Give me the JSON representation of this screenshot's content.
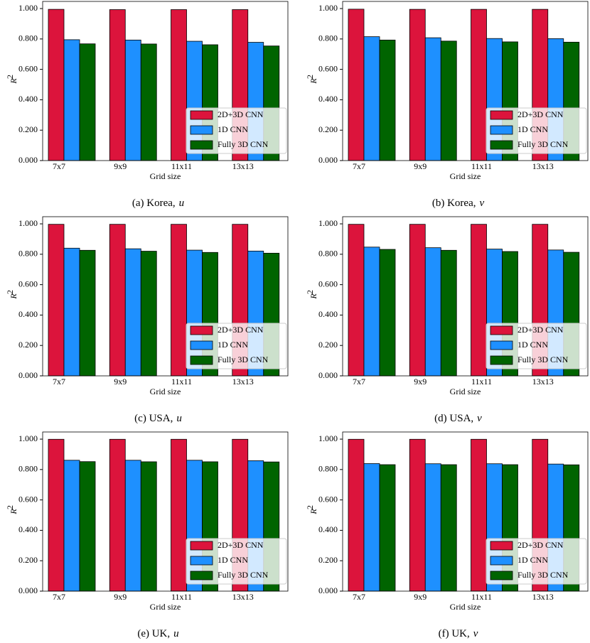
{
  "chart_data": [
    {
      "type": "bar",
      "label": "(a) Korea,",
      "variable": "u",
      "xlabel": "Grid size",
      "ylabel": "R",
      "ylabel_sup": "2",
      "categories": [
        "7x7",
        "9x9",
        "11x11",
        "13x13"
      ],
      "series": [
        {
          "name": "2D+3D CNN",
          "color": "#dc143c",
          "values": [
            0.995,
            0.993,
            0.993,
            0.993
          ]
        },
        {
          "name": "1D CNN",
          "color": "#1e90ff",
          "values": [
            0.795,
            0.793,
            0.785,
            0.778
          ]
        },
        {
          "name": "Fully 3D CNN",
          "color": "#006400",
          "values": [
            0.768,
            0.767,
            0.762,
            0.754
          ]
        }
      ],
      "ylim": [
        0,
        1.047
      ],
      "yticks": [
        {
          "value": 0,
          "label": "0.000"
        },
        {
          "value": 0.2,
          "label": "0.200"
        },
        {
          "value": 0.4,
          "label": "0.400"
        },
        {
          "value": 0.6,
          "label": "0.600"
        },
        {
          "value": 0.8,
          "label": "0.800"
        },
        {
          "value": 1,
          "label": "1.000"
        }
      ],
      "legend": "lower right"
    },
    {
      "type": "bar",
      "label": "(b) Korea,",
      "variable": "v",
      "xlabel": "Grid size",
      "ylabel": "R",
      "ylabel_sup": "2",
      "categories": [
        "7x7",
        "9x9",
        "11x11",
        "13x13"
      ],
      "series": [
        {
          "name": "2D+3D CNN",
          "color": "#dc143c",
          "values": [
            0.996,
            0.995,
            0.995,
            0.995
          ]
        },
        {
          "name": "1D CNN",
          "color": "#1e90ff",
          "values": [
            0.815,
            0.808,
            0.803,
            0.802
          ]
        },
        {
          "name": "Fully 3D CNN",
          "color": "#006400",
          "values": [
            0.793,
            0.786,
            0.781,
            0.779
          ]
        }
      ],
      "ylim": [
        0,
        1.047
      ],
      "yticks": [
        {
          "value": 0,
          "label": "0.000"
        },
        {
          "value": 0.2,
          "label": "0.200"
        },
        {
          "value": 0.4,
          "label": "0.400"
        },
        {
          "value": 0.6,
          "label": "0.600"
        },
        {
          "value": 0.8,
          "label": "0.800"
        },
        {
          "value": 1,
          "label": "1.000"
        }
      ],
      "legend": "lower right"
    },
    {
      "type": "bar",
      "label": "(c) USA,",
      "variable": "u",
      "xlabel": "Grid size",
      "ylabel": "R",
      "ylabel_sup": "2",
      "categories": [
        "7x7",
        "9x9",
        "11x11",
        "13x13"
      ],
      "series": [
        {
          "name": "2D+3D CNN",
          "color": "#dc143c",
          "values": [
            0.997,
            0.997,
            0.997,
            0.997
          ]
        },
        {
          "name": "1D CNN",
          "color": "#1e90ff",
          "values": [
            0.84,
            0.836,
            0.827,
            0.821
          ]
        },
        {
          "name": "Fully 3D CNN",
          "color": "#006400",
          "values": [
            0.826,
            0.82,
            0.812,
            0.807
          ]
        }
      ],
      "ylim": [
        0,
        1.047
      ],
      "yticks": [
        {
          "value": 0,
          "label": "0.000"
        },
        {
          "value": 0.2,
          "label": "0.200"
        },
        {
          "value": 0.4,
          "label": "0.400"
        },
        {
          "value": 0.6,
          "label": "0.600"
        },
        {
          "value": 0.8,
          "label": "0.800"
        },
        {
          "value": 1,
          "label": "1.000"
        }
      ],
      "legend": "lower right"
    },
    {
      "type": "bar",
      "label": "(d) USA,",
      "variable": "v",
      "xlabel": "Grid size",
      "ylabel": "R",
      "ylabel_sup": "2",
      "categories": [
        "7x7",
        "9x9",
        "11x11",
        "13x13"
      ],
      "series": [
        {
          "name": "2D+3D CNN",
          "color": "#dc143c",
          "values": [
            0.997,
            0.997,
            0.997,
            0.997
          ]
        },
        {
          "name": "1D CNN",
          "color": "#1e90ff",
          "values": [
            0.847,
            0.843,
            0.834,
            0.828
          ]
        },
        {
          "name": "Fully 3D CNN",
          "color": "#006400",
          "values": [
            0.832,
            0.826,
            0.818,
            0.813
          ]
        }
      ],
      "ylim": [
        0,
        1.047
      ],
      "yticks": [
        {
          "value": 0,
          "label": "0.000"
        },
        {
          "value": 0.2,
          "label": "0.200"
        },
        {
          "value": 0.4,
          "label": "0.400"
        },
        {
          "value": 0.6,
          "label": "0.600"
        },
        {
          "value": 0.8,
          "label": "0.800"
        },
        {
          "value": 1,
          "label": "1.000"
        }
      ],
      "legend": "lower right"
    },
    {
      "type": "bar",
      "label": "(e) UK,",
      "variable": "u",
      "xlabel": "Grid size",
      "ylabel": "R",
      "ylabel_sup": "2",
      "categories": [
        "7x7",
        "9x9",
        "11x11",
        "13x13"
      ],
      "series": [
        {
          "name": "2D+3D CNN",
          "color": "#dc143c",
          "values": [
            0.999,
            0.999,
            0.999,
            0.999
          ]
        },
        {
          "name": "1D CNN",
          "color": "#1e90ff",
          "values": [
            0.861,
            0.861,
            0.861,
            0.858
          ]
        },
        {
          "name": "Fully 3D CNN",
          "color": "#006400",
          "values": [
            0.852,
            0.851,
            0.851,
            0.85
          ]
        }
      ],
      "ylim": [
        0,
        1.047
      ],
      "yticks": [
        {
          "value": 0,
          "label": "0.000"
        },
        {
          "value": 0.2,
          "label": "0.200"
        },
        {
          "value": 0.4,
          "label": "0.400"
        },
        {
          "value": 0.6,
          "label": "0.600"
        },
        {
          "value": 0.8,
          "label": "0.800"
        },
        {
          "value": 1,
          "label": "1.000"
        }
      ],
      "legend": "lower right"
    },
    {
      "type": "bar",
      "label": "(f) UK,",
      "variable": "v",
      "xlabel": "Grid size",
      "ylabel": "R",
      "ylabel_sup": "2",
      "categories": [
        "7x7",
        "9x9",
        "11x11",
        "13x13"
      ],
      "series": [
        {
          "name": "2D+3D CNN",
          "color": "#dc143c",
          "values": [
            0.999,
            0.999,
            0.999,
            0.999
          ]
        },
        {
          "name": "1D CNN",
          "color": "#1e90ff",
          "values": [
            0.839,
            0.838,
            0.838,
            0.836
          ]
        },
        {
          "name": "Fully 3D CNN",
          "color": "#006400",
          "values": [
            0.832,
            0.832,
            0.832,
            0.831
          ]
        }
      ],
      "ylim": [
        0,
        1.047
      ],
      "yticks": [
        {
          "value": 0,
          "label": "0.000"
        },
        {
          "value": 0.2,
          "label": "0.200"
        },
        {
          "value": 0.4,
          "label": "0.400"
        },
        {
          "value": 0.6,
          "label": "0.600"
        },
        {
          "value": 0.8,
          "label": "0.800"
        },
        {
          "value": 1,
          "label": "1.000"
        }
      ],
      "legend": "lower right"
    }
  ]
}
